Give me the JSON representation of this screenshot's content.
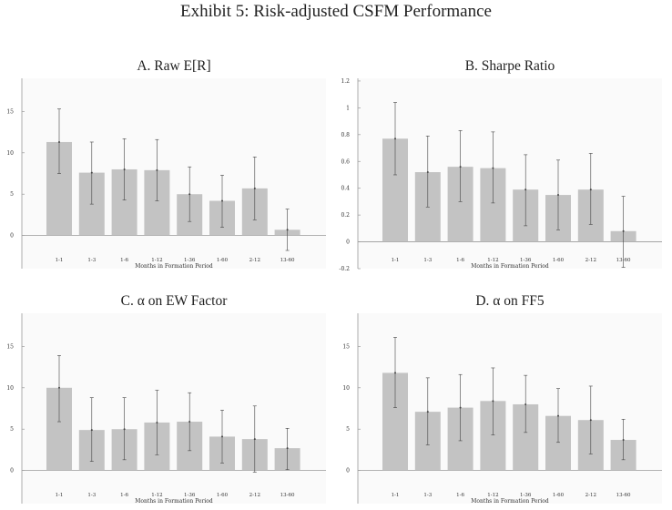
{
  "title": "Exhibit 5: Risk-adjusted CSFM Performance",
  "chart_data": [
    {
      "type": "bar",
      "title": "A. Raw E[R]",
      "xlabel": "Months in Formation Period",
      "ylabel": "",
      "categories": [
        "1-1",
        "1-3",
        "1-6",
        "1-12",
        "1-36",
        "1-60",
        "2-12",
        "13-60"
      ],
      "values": [
        11.3,
        7.6,
        8.0,
        7.9,
        5.0,
        4.2,
        5.7,
        0.7
      ],
      "error_low": [
        7.5,
        3.8,
        4.3,
        4.2,
        1.7,
        1.0,
        1.9,
        -1.8
      ],
      "error_high": [
        15.3,
        11.3,
        11.7,
        11.6,
        8.3,
        7.3,
        9.5,
        3.2
      ],
      "ylim": [
        -4,
        19
      ],
      "yticks": [
        0,
        5,
        10,
        15
      ],
      "ytick_labels": [
        "0",
        "5",
        "10",
        "15"
      ]
    },
    {
      "type": "bar",
      "title": "B. Sharpe Ratio",
      "xlabel": "Months in Formation Period",
      "ylabel": "",
      "categories": [
        "1-1",
        "1-3",
        "1-6",
        "1-12",
        "1-36",
        "1-60",
        "2-12",
        "13-60"
      ],
      "values": [
        0.77,
        0.52,
        0.56,
        0.55,
        0.39,
        0.35,
        0.39,
        0.08
      ],
      "error_low": [
        0.5,
        0.26,
        0.3,
        0.29,
        0.12,
        0.09,
        0.13,
        -0.19
      ],
      "error_high": [
        1.04,
        0.79,
        0.83,
        0.82,
        0.65,
        0.61,
        0.66,
        0.34
      ],
      "ylim": [
        -0.2,
        1.22
      ],
      "yticks": [
        -0.2,
        0,
        0.2,
        0.4,
        0.6,
        0.8,
        1,
        1.2
      ],
      "ytick_labels": [
        "-0.2",
        "0",
        "0.2",
        "0.4",
        "0.6",
        "0.8",
        "1",
        "1.2"
      ]
    },
    {
      "type": "bar",
      "title": "C. α on EW Factor",
      "xlabel": "Months in Formation Period",
      "ylabel": "",
      "categories": [
        "1-1",
        "1-3",
        "1-6",
        "1-12",
        "1-36",
        "1-60",
        "2-12",
        "13-60"
      ],
      "values": [
        10.0,
        4.9,
        5.0,
        5.8,
        5.9,
        4.1,
        3.8,
        2.7
      ],
      "error_low": [
        5.9,
        1.1,
        1.3,
        1.9,
        2.4,
        0.9,
        -0.2,
        0.1
      ],
      "error_high": [
        13.9,
        8.8,
        8.8,
        9.7,
        9.4,
        7.3,
        7.8,
        5.1
      ],
      "ylim": [
        -4,
        19
      ],
      "yticks": [
        0,
        5,
        10,
        15
      ],
      "ytick_labels": [
        "0",
        "5",
        "10",
        "15"
      ]
    },
    {
      "type": "bar",
      "title": "D. α on FF5",
      "xlabel": "Months in Formation Period",
      "ylabel": "",
      "categories": [
        "1-1",
        "1-3",
        "1-6",
        "1-12",
        "1-36",
        "1-60",
        "2-12",
        "13-60"
      ],
      "values": [
        11.8,
        7.1,
        7.6,
        8.4,
        8.0,
        6.6,
        6.1,
        3.7
      ],
      "error_low": [
        7.6,
        3.1,
        3.6,
        4.3,
        4.6,
        3.4,
        2.0,
        1.3
      ],
      "error_high": [
        16.1,
        11.2,
        11.6,
        12.4,
        11.5,
        9.9,
        10.2,
        6.2
      ],
      "ylim": [
        -4,
        19
      ],
      "yticks": [
        0,
        5,
        10,
        15
      ],
      "ytick_labels": [
        "0",
        "5",
        "10",
        "15"
      ]
    }
  ],
  "colors": {
    "bar": "#c3c3c3",
    "error": "#444444",
    "axis": "#999999",
    "plot_bg": "#fafafa"
  }
}
